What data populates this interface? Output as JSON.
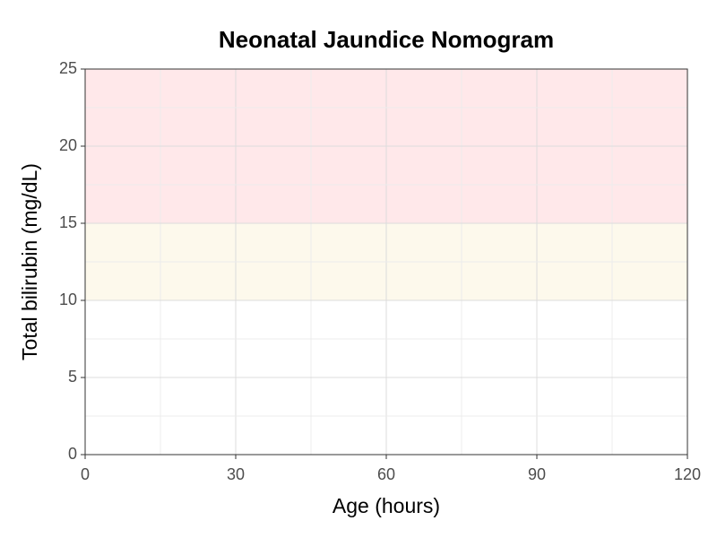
{
  "chart_data": {
    "type": "band",
    "title": "Neonatal Jaundice Nomogram",
    "x_label": "Age (hours)",
    "y_label": "Total bilirubin (mg/dL)",
    "bands": [
      {
        "from": 15,
        "to": 25,
        "color": "#ffe8ea"
      },
      {
        "from": 10,
        "to": 15,
        "color": "#fdf9ec"
      }
    ],
    "xlim": [
      0,
      120
    ],
    "xticks": [
      0,
      30,
      60,
      90,
      120
    ],
    "ylim": [
      0,
      25
    ],
    "yticks": [
      0,
      5,
      10,
      15,
      20,
      25
    ],
    "grid": true
  }
}
